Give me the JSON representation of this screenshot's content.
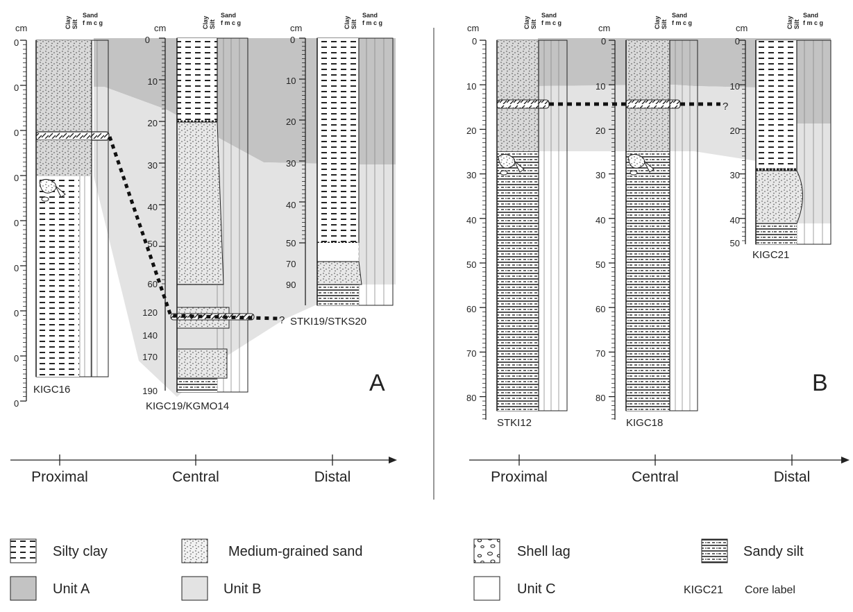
{
  "panels": [
    {
      "letter": "A",
      "axis": [
        "Proximal",
        "Central",
        "Distal"
      ],
      "cores": [
        {
          "label": "KIGC16",
          "unit": "cm",
          "ticks": [
            "0",
            "0",
            "0",
            "0",
            "0",
            "0",
            "0",
            "0",
            "0"
          ]
        },
        {
          "label": "KIGC19/KGMO14",
          "unit": "cm",
          "ticks": [
            "0",
            "10",
            "20",
            "30",
            "40",
            "50",
            "60",
            "120",
            "140",
            "170",
            "190"
          ]
        },
        {
          "label": "STKI19/STKS20",
          "unit": "cm",
          "ticks": [
            "0",
            "10",
            "20",
            "30",
            "40",
            "50",
            "70",
            "90"
          ]
        }
      ],
      "correlation_mark": "?"
    },
    {
      "letter": "B",
      "axis": [
        "Proximal",
        "Central",
        "Distal"
      ],
      "cores": [
        {
          "label": "STKI12",
          "unit": "cm",
          "ticks": [
            "0",
            "10",
            "20",
            "30",
            "40",
            "50",
            "60",
            "70",
            "80"
          ]
        },
        {
          "label": "KIGC18",
          "unit": "cm",
          "ticks": [
            "0",
            "10",
            "20",
            "30",
            "40",
            "50",
            "60",
            "70",
            "80"
          ]
        },
        {
          "label": "KIGC21",
          "unit": "cm",
          "ticks": [
            "0",
            "10",
            "20",
            "30",
            "40",
            "50"
          ]
        }
      ],
      "correlation_mark": "?"
    }
  ],
  "grain_header": {
    "clay": "Clay",
    "silt": "Silt",
    "sand": "Sand",
    "fractions": "f m c g"
  },
  "legend": {
    "silty_clay": "Silty clay",
    "medium_sand": "Medium-grained sand",
    "shell_lag": "Shell lag",
    "sandy_silt": "Sandy silt",
    "unit_a": "Unit A",
    "unit_b": "Unit B",
    "unit_c": "Unit C",
    "core_label_example": "KIGC21",
    "core_label_text": "Core label"
  },
  "colors": {
    "unit_a": "#c3c3c3",
    "unit_b": "#e3e3e3",
    "unit_c": "#ffffff",
    "line": "#222222"
  }
}
